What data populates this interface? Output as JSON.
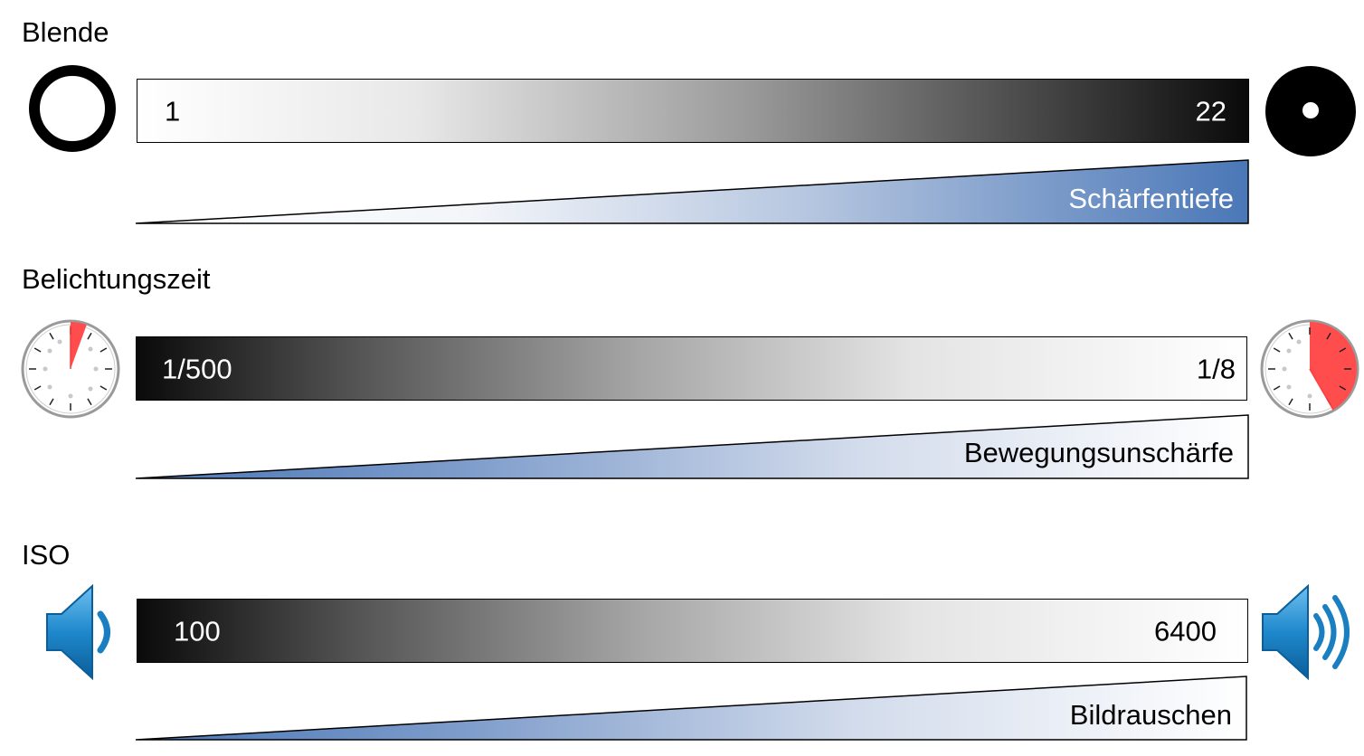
{
  "sections": [
    {
      "title": "Blende",
      "scale_start": "1",
      "scale_end": "22",
      "effect_label": "Schärfentiefe",
      "left_icon": "large-aperture-icon",
      "right_icon": "small-aperture-icon",
      "gradient": "white-to-black",
      "effect_gradient": "white-to-blue"
    },
    {
      "title": "Belichtungszeit",
      "scale_start": "1/500",
      "scale_end": "1/8",
      "effect_label": "Bewegungsunschärfe",
      "left_icon": "stopwatch-short-icon",
      "right_icon": "stopwatch-long-icon",
      "gradient": "black-to-white",
      "effect_gradient": "blue-to-white"
    },
    {
      "title": "ISO",
      "scale_start": "100",
      "scale_end": "6400",
      "effect_label": "Bildrauschen",
      "left_icon": "speaker-quiet-icon",
      "right_icon": "speaker-loud-icon",
      "gradient": "black-to-white",
      "effect_gradient": "blue-to-white"
    }
  ],
  "colors": {
    "effect_blue": "#4a77b7",
    "timer_red": "#ff4d4d",
    "speaker_blue": "#1a7fc1"
  }
}
